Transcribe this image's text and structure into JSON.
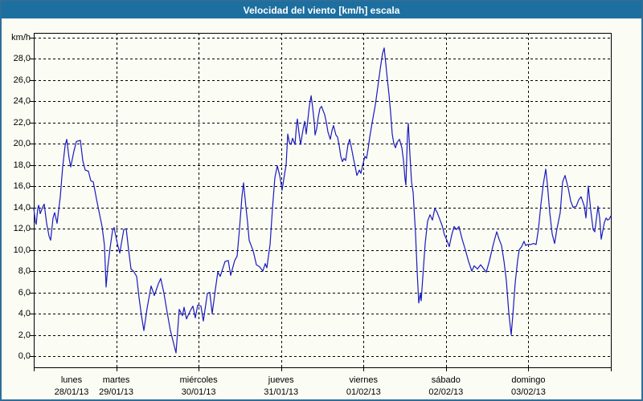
{
  "window": {
    "title": "Velocidad del viento [km/h] escala"
  },
  "colors": {
    "titlebar_bg": "#1c6f9f",
    "title_text": "#ffffff",
    "window_border": "#2f6e99",
    "content_bg": "#fbfcf4",
    "grid": "#000000",
    "axis": "#000000",
    "line": "#1a1ac0"
  },
  "y_axis": {
    "ticks": [
      {
        "value": 30,
        "label": "km/h"
      },
      {
        "value": 28,
        "label": "28,0"
      },
      {
        "value": 26,
        "label": "26,0"
      },
      {
        "value": 24,
        "label": "24,0"
      },
      {
        "value": 22,
        "label": "22,0"
      },
      {
        "value": 20,
        "label": "20,0"
      },
      {
        "value": 18,
        "label": "18,0"
      },
      {
        "value": 16,
        "label": "16,0"
      },
      {
        "value": 14,
        "label": "14,0"
      },
      {
        "value": 12,
        "label": "12,0"
      },
      {
        "value": 10,
        "label": "10,0"
      },
      {
        "value": 8,
        "label": "8,0"
      },
      {
        "value": 6,
        "label": "6,0"
      },
      {
        "value": 4,
        "label": "4,0"
      },
      {
        "value": 2,
        "label": "2,0"
      },
      {
        "value": 0,
        "label": "0,0"
      }
    ]
  },
  "x_axis": {
    "days": [
      {
        "name": "lunes",
        "date": "28/01/13"
      },
      {
        "name": "martes",
        "date": "29/01/13"
      },
      {
        "name": "miércoles",
        "date": "30/01/13"
      },
      {
        "name": "jueves",
        "date": "31/01/13"
      },
      {
        "name": "viernes",
        "date": "01/02/13"
      },
      {
        "name": "sábado",
        "date": "02/02/13"
      },
      {
        "name": "domingo",
        "date": "03/02/13"
      }
    ]
  },
  "chart_data": {
    "type": "line",
    "title": "Velocidad del viento [km/h] escala",
    "xlabel": "",
    "ylabel": "km/h",
    "ylim": [
      0,
      30
    ],
    "y_tick_step": 2,
    "grid": "dashed",
    "legend_position": "none",
    "x_unit": "days, 0 = lunes 28/01/13 00:00, range 0-7",
    "x_categories": [
      "lunes 28/01/13",
      "martes 29/01/13",
      "miércoles 30/01/13",
      "jueves 31/01/13",
      "viernes 01/02/13",
      "sábado 02/02/13",
      "domingo 03/02/13"
    ],
    "series": [
      {
        "name": "Velocidad del viento [km/h]",
        "color": "#1a1ac0",
        "points": [
          [
            0.0,
            13.9
          ],
          [
            0.02,
            12.6
          ],
          [
            0.029,
            12.4
          ],
          [
            0.049,
            13.9
          ],
          [
            0.059,
            14.2
          ],
          [
            0.078,
            13.4
          ],
          [
            0.107,
            14.0
          ],
          [
            0.127,
            14.3
          ],
          [
            0.156,
            12.5
          ],
          [
            0.185,
            11.3
          ],
          [
            0.205,
            10.9
          ],
          [
            0.234,
            13.0
          ],
          [
            0.253,
            13.5
          ],
          [
            0.283,
            12.5
          ],
          [
            0.322,
            15.0
          ],
          [
            0.351,
            17.8
          ],
          [
            0.38,
            19.8
          ],
          [
            0.4,
            20.4
          ],
          [
            0.429,
            18.6
          ],
          [
            0.448,
            17.8
          ],
          [
            0.487,
            19.3
          ],
          [
            0.517,
            20.2
          ],
          [
            0.565,
            20.3
          ],
          [
            0.595,
            18.4
          ],
          [
            0.624,
            17.5
          ],
          [
            0.663,
            17.4
          ],
          [
            0.692,
            16.5
          ],
          [
            0.721,
            16.4
          ],
          [
            0.76,
            14.8
          ],
          [
            0.799,
            13.3
          ],
          [
            0.829,
            12.2
          ],
          [
            0.858,
            10.4
          ],
          [
            0.877,
            6.5
          ],
          [
            0.897,
            8.3
          ],
          [
            0.926,
            10.2
          ],
          [
            0.955,
            11.8
          ],
          [
            0.975,
            12.1
          ],
          [
            0.994,
            11.3
          ],
          [
            1.014,
            10.6
          ],
          [
            1.043,
            9.7
          ],
          [
            1.092,
            11.9
          ],
          [
            1.121,
            12.0
          ],
          [
            1.15,
            10.0
          ],
          [
            1.18,
            8.2
          ],
          [
            1.209,
            8.0
          ],
          [
            1.248,
            7.5
          ],
          [
            1.277,
            5.5
          ],
          [
            1.306,
            3.8
          ],
          [
            1.336,
            2.4
          ],
          [
            1.375,
            4.5
          ],
          [
            1.423,
            6.6
          ],
          [
            1.462,
            5.7
          ],
          [
            1.511,
            6.8
          ],
          [
            1.54,
            7.3
          ],
          [
            1.579,
            5.9
          ],
          [
            1.618,
            4.1
          ],
          [
            1.657,
            2.4
          ],
          [
            1.687,
            1.5
          ],
          [
            1.726,
            0.3
          ],
          [
            1.765,
            4.4
          ],
          [
            1.804,
            3.8
          ],
          [
            1.823,
            4.6
          ],
          [
            1.852,
            3.5
          ],
          [
            1.901,
            4.3
          ],
          [
            1.93,
            4.7
          ],
          [
            1.96,
            3.6
          ],
          [
            1.989,
            4.8
          ],
          [
            2.028,
            4.7
          ],
          [
            2.057,
            3.3
          ],
          [
            2.106,
            5.9
          ],
          [
            2.135,
            6.0
          ],
          [
            2.164,
            4.0
          ],
          [
            2.203,
            6.3
          ],
          [
            2.233,
            7.9
          ],
          [
            2.262,
            7.5
          ],
          [
            2.32,
            8.9
          ],
          [
            2.359,
            9.0
          ],
          [
            2.389,
            7.6
          ],
          [
            2.437,
            9.0
          ],
          [
            2.467,
            9.4
          ],
          [
            2.496,
            12.0
          ],
          [
            2.525,
            15.0
          ],
          [
            2.545,
            16.3
          ],
          [
            2.574,
            14.0
          ],
          [
            2.593,
            12.6
          ],
          [
            2.613,
            10.9
          ],
          [
            2.662,
            9.9
          ],
          [
            2.701,
            8.6
          ],
          [
            2.74,
            8.4
          ],
          [
            2.779,
            8.0
          ],
          [
            2.808,
            8.7
          ],
          [
            2.827,
            8.3
          ],
          [
            2.866,
            10.5
          ],
          [
            2.896,
            13.9
          ],
          [
            2.925,
            16.8
          ],
          [
            2.954,
            17.9
          ],
          [
            2.983,
            17.0
          ],
          [
            3.003,
            16.1
          ],
          [
            3.012,
            15.6
          ],
          [
            3.042,
            17.1
          ],
          [
            3.061,
            18.0
          ],
          [
            3.081,
            20.9
          ],
          [
            3.1,
            20.1
          ],
          [
            3.12,
            19.9
          ],
          [
            3.139,
            20.5
          ],
          [
            3.169,
            19.9
          ],
          [
            3.188,
            21.8
          ],
          [
            3.198,
            22.3
          ],
          [
            3.217,
            21.0
          ],
          [
            3.237,
            19.9
          ],
          [
            3.266,
            21.3
          ],
          [
            3.286,
            22.1
          ],
          [
            3.305,
            20.9
          ],
          [
            3.325,
            22.3
          ],
          [
            3.344,
            23.6
          ],
          [
            3.364,
            24.5
          ],
          [
            3.383,
            23.4
          ],
          [
            3.403,
            21.9
          ],
          [
            3.412,
            20.8
          ],
          [
            3.432,
            21.4
          ],
          [
            3.451,
            22.5
          ],
          [
            3.471,
            23.3
          ],
          [
            3.49,
            23.5
          ],
          [
            3.51,
            23.1
          ],
          [
            3.529,
            22.7
          ],
          [
            3.549,
            22.0
          ],
          [
            3.568,
            21.1
          ],
          [
            3.597,
            20.4
          ],
          [
            3.617,
            21.2
          ],
          [
            3.636,
            21.7
          ],
          [
            3.666,
            20.8
          ],
          [
            3.685,
            20.6
          ],
          [
            3.705,
            19.8
          ],
          [
            3.724,
            18.8
          ],
          [
            3.744,
            18.3
          ],
          [
            3.763,
            18.6
          ],
          [
            3.783,
            18.4
          ],
          [
            3.812,
            19.9
          ],
          [
            3.831,
            20.4
          ],
          [
            3.851,
            19.7
          ],
          [
            3.88,
            18.5
          ],
          [
            3.9,
            17.8
          ],
          [
            3.919,
            17.0
          ],
          [
            3.949,
            17.5
          ],
          [
            3.968,
            17.2
          ],
          [
            3.988,
            17.9
          ],
          [
            4.017,
            18.8
          ],
          [
            4.036,
            18.6
          ],
          [
            4.056,
            19.5
          ],
          [
            4.075,
            20.6
          ],
          [
            4.105,
            22.0
          ],
          [
            4.144,
            23.7
          ],
          [
            4.173,
            25.3
          ],
          [
            4.202,
            27.0
          ],
          [
            4.231,
            28.5
          ],
          [
            4.251,
            29.0
          ],
          [
            4.27,
            27.5
          ],
          [
            4.29,
            26.0
          ],
          [
            4.309,
            24.6
          ],
          [
            4.329,
            22.9
          ],
          [
            4.348,
            20.9
          ],
          [
            4.368,
            20.0
          ],
          [
            4.387,
            19.6
          ],
          [
            4.407,
            20.1
          ],
          [
            4.436,
            20.4
          ],
          [
            4.465,
            19.6
          ],
          [
            4.485,
            18.4
          ],
          [
            4.504,
            16.6
          ],
          [
            4.514,
            16.1
          ],
          [
            4.533,
            21.0
          ],
          [
            4.543,
            21.9
          ],
          [
            4.563,
            19.0
          ],
          [
            4.582,
            16.4
          ],
          [
            4.602,
            15.4
          ],
          [
            4.631,
            11.5
          ],
          [
            4.65,
            8.0
          ],
          [
            4.67,
            5.0
          ],
          [
            4.689,
            5.9
          ],
          [
            4.699,
            5.2
          ],
          [
            4.719,
            7.4
          ],
          [
            4.748,
            10.6
          ],
          [
            4.777,
            12.7
          ],
          [
            4.806,
            13.3
          ],
          [
            4.836,
            12.8
          ],
          [
            4.865,
            13.9
          ],
          [
            4.894,
            13.5
          ],
          [
            4.923,
            12.9
          ],
          [
            4.953,
            12.3
          ],
          [
            4.982,
            11.4
          ],
          [
            5.011,
            10.9
          ],
          [
            5.04,
            10.3
          ],
          [
            5.07,
            11.4
          ],
          [
            5.099,
            12.2
          ],
          [
            5.128,
            11.9
          ],
          [
            5.157,
            12.2
          ],
          [
            5.196,
            11.0
          ],
          [
            5.235,
            10.0
          ],
          [
            5.274,
            8.9
          ],
          [
            5.313,
            8.0
          ],
          [
            5.343,
            8.5
          ],
          [
            5.382,
            8.2
          ],
          [
            5.421,
            8.6
          ],
          [
            5.46,
            8.2
          ],
          [
            5.489,
            7.9
          ],
          [
            5.528,
            9.0
          ],
          [
            5.577,
            10.6
          ],
          [
            5.616,
            11.7
          ],
          [
            5.645,
            11.0
          ],
          [
            5.674,
            10.4
          ],
          [
            5.704,
            8.9
          ],
          [
            5.733,
            7.1
          ],
          [
            5.762,
            4.1
          ],
          [
            5.791,
            2.0
          ],
          [
            5.811,
            3.8
          ],
          [
            5.84,
            6.9
          ],
          [
            5.869,
            9.0
          ],
          [
            5.889,
            10.0
          ],
          [
            5.918,
            10.3
          ],
          [
            5.947,
            10.8
          ],
          [
            5.967,
            10.4
          ],
          [
            5.986,
            10.5
          ],
          [
            6.025,
            10.5
          ],
          [
            6.064,
            10.6
          ],
          [
            6.093,
            10.5
          ],
          [
            6.123,
            12.0
          ],
          [
            6.152,
            14.3
          ],
          [
            6.181,
            16.2
          ],
          [
            6.21,
            17.6
          ],
          [
            6.23,
            16.2
          ],
          [
            6.259,
            13.5
          ],
          [
            6.288,
            11.5
          ],
          [
            6.318,
            10.6
          ],
          [
            6.347,
            12.0
          ],
          [
            6.386,
            13.5
          ],
          [
            6.415,
            16.4
          ],
          [
            6.444,
            17.0
          ],
          [
            6.483,
            15.8
          ],
          [
            6.513,
            14.6
          ],
          [
            6.542,
            14.0
          ],
          [
            6.581,
            14.1
          ],
          [
            6.61,
            14.7
          ],
          [
            6.639,
            15.0
          ],
          [
            6.678,
            14.1
          ],
          [
            6.698,
            13.0
          ],
          [
            6.727,
            16.0
          ],
          [
            6.756,
            13.7
          ],
          [
            6.786,
            11.9
          ],
          [
            6.805,
            11.7
          ],
          [
            6.844,
            14.1
          ],
          [
            6.864,
            13.0
          ],
          [
            6.883,
            11.0
          ],
          [
            6.922,
            12.6
          ],
          [
            6.942,
            13.0
          ],
          [
            6.961,
            12.8
          ],
          [
            6.981,
            12.9
          ],
          [
            7.0,
            13.2
          ]
        ]
      }
    ]
  }
}
